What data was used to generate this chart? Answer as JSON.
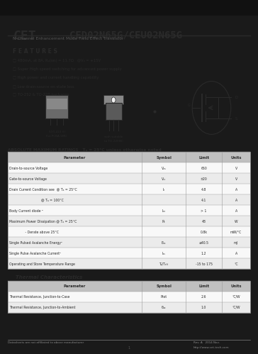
{
  "bg_color": "#1a1a1a",
  "page_bg": "#f0f0f0",
  "title_logo": "CET",
  "title_part": "CED02N65G/CEU02N65G",
  "subtitle": "N-Channel Enhancement Mode Field Effect Transistor",
  "features_title": "F E A T U R E S",
  "features": [
    "□ 480mA, at 8A, Rₐ(on) = 11.7Ω   @Vₐ = +15V",
    "□ Super High speed switching for advanced power supply",
    "□ High power and current handling capability",
    "□ Low drain-source on-state loss",
    "□ TO-252 & TO-220 packages"
  ],
  "abs_title": "ABSOLUTE MAXIMUM RATINGS   Tₐ = 25°C unless otherwise noted",
  "abs_headers": [
    "Parameter",
    "Symbol",
    "Limit",
    "Units"
  ],
  "abs_rows": [
    [
      "Drain-to-source Voltage",
      "Vₑₛ",
      "650",
      "V"
    ],
    [
      "Gate-to-source Voltage",
      "Vₜₛ",
      "±20",
      "V"
    ],
    [
      "Drain Current Condition see  @ Tₐ = 25°C",
      "Iₑ",
      "4.8",
      "A"
    ],
    [
      "                              @ Tₐ = 100°C",
      "",
      "4.1",
      "A"
    ],
    [
      "Body Current diode ²",
      "Iₑₑ",
      "> 1",
      "A"
    ],
    [
      "Maximum Power Dissipation @ Tₐ = 25°C",
      "Pₑ",
      "48",
      "W"
    ],
    [
      "               - Derate above 25°C",
      "",
      "0.8k",
      "mW/°C"
    ],
    [
      "Single Pulsed Avalanche Energy²",
      "Eₐₛ",
      "≤40.5",
      "mJ"
    ],
    [
      "Single Pulse Avalanche Current²",
      "Iₐₛ",
      "1.2",
      "A"
    ],
    [
      "Operating and Store Temperature Range",
      "Tₐ/Tₛₜₜ",
      "-15 to 175",
      "°C"
    ]
  ],
  "thermal_title": "Thermal Characteristics",
  "thermal_headers": [
    "Parameter",
    "Symbol",
    "Limit",
    "Units"
  ],
  "thermal_rows": [
    [
      "Thermal Resistance, Junction-to-Case",
      "Ptot",
      "2.6",
      "°C/W"
    ],
    [
      "Thermal Resistance, Junction-to-Ambient",
      "θₐₐ",
      "1.0",
      "°C/W"
    ]
  ],
  "footer_note": "Datasheets are not affiliated to above manufacturer",
  "footer_left": "Rev. A   2014 Nov.",
  "footer_right": "http://www.cet-tech.com",
  "footer_page": "1"
}
